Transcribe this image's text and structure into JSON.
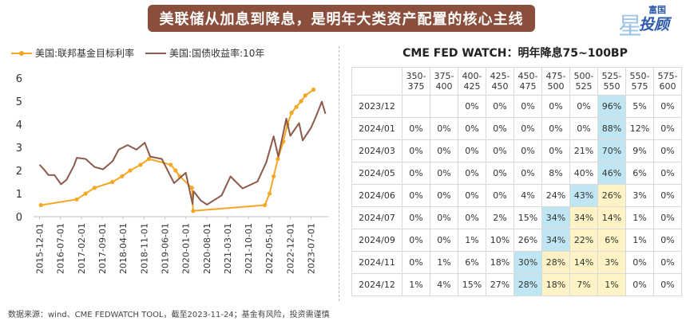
{
  "banner": {
    "title": "美联储从加息到降息，是明年大类资产配置的核心主线"
  },
  "logo": {
    "top": "富国",
    "main": "投顾",
    "star_char": "星",
    "star_color": "#9dc3e6",
    "text_color": "#2d5aa8"
  },
  "footer": {
    "source": "数据来源：wind、CME FEDWATCH TOOL，截至2023-11-24；基金有风险，投资需谨慎"
  },
  "chart_data": {
    "type": "line",
    "title": "",
    "ylim": [
      0,
      6
    ],
    "yticks": [
      0,
      1,
      2,
      3,
      4,
      5,
      6
    ],
    "x_range": [
      "2015-10-01",
      "2023-12-31"
    ],
    "xticks": [
      "2015-12-01",
      "2016-07-01",
      "2017-02-01",
      "2017-09-01",
      "2018-04-01",
      "2018-11-01",
      "2019-06-01",
      "2020-01-01",
      "2020-08-01",
      "2021-03-01",
      "2021-10-01",
      "2022-05-01",
      "2022-12-01",
      "2023-07-01"
    ],
    "legend_position": "top",
    "grid": false,
    "series": [
      {
        "name": "美国:联邦基金目标利率",
        "color": "#f5a623",
        "markers": true,
        "points": [
          [
            "2015-12-16",
            0.5
          ],
          [
            "2016-12-14",
            0.75
          ],
          [
            "2017-03-15",
            1.0
          ],
          [
            "2017-06-14",
            1.25
          ],
          [
            "2017-12-13",
            1.5
          ],
          [
            "2018-03-21",
            1.75
          ],
          [
            "2018-06-13",
            2.0
          ],
          [
            "2018-09-26",
            2.25
          ],
          [
            "2018-12-19",
            2.5
          ],
          [
            "2019-07-31",
            2.25
          ],
          [
            "2019-09-18",
            2.0
          ],
          [
            "2019-10-30",
            1.75
          ],
          [
            "2020-03-03",
            1.25
          ],
          [
            "2020-03-15",
            0.25
          ],
          [
            "2022-03-16",
            0.5
          ],
          [
            "2022-05-04",
            1.0
          ],
          [
            "2022-06-15",
            1.75
          ],
          [
            "2022-07-27",
            2.5
          ],
          [
            "2022-09-21",
            3.25
          ],
          [
            "2022-11-02",
            4.0
          ],
          [
            "2022-12-14",
            4.5
          ],
          [
            "2023-02-01",
            4.75
          ],
          [
            "2023-03-22",
            5.0
          ],
          [
            "2023-05-03",
            5.25
          ],
          [
            "2023-07-26",
            5.5
          ]
        ]
      },
      {
        "name": "美国:国债收益率:10年",
        "color": "#8b5a4a",
        "markers": false,
        "points": [
          [
            "2015-12-01",
            2.25
          ],
          [
            "2016-01-15",
            2.05
          ],
          [
            "2016-03-01",
            1.8
          ],
          [
            "2016-05-01",
            1.8
          ],
          [
            "2016-07-08",
            1.4
          ],
          [
            "2016-09-01",
            1.6
          ],
          [
            "2016-11-15",
            2.2
          ],
          [
            "2016-12-15",
            2.55
          ],
          [
            "2017-03-15",
            2.5
          ],
          [
            "2017-06-15",
            2.15
          ],
          [
            "2017-09-08",
            2.05
          ],
          [
            "2017-12-15",
            2.4
          ],
          [
            "2018-02-15",
            2.9
          ],
          [
            "2018-05-17",
            3.1
          ],
          [
            "2018-08-15",
            2.9
          ],
          [
            "2018-11-08",
            3.2
          ],
          [
            "2019-01-03",
            2.6
          ],
          [
            "2019-05-01",
            2.5
          ],
          [
            "2019-09-03",
            1.45
          ],
          [
            "2019-12-31",
            1.9
          ],
          [
            "2020-03-09",
            0.55
          ],
          [
            "2020-03-20",
            1.1
          ],
          [
            "2020-06-01",
            0.7
          ],
          [
            "2020-08-04",
            0.52
          ],
          [
            "2020-12-31",
            0.92
          ],
          [
            "2021-03-31",
            1.74
          ],
          [
            "2021-08-01",
            1.22
          ],
          [
            "2021-12-31",
            1.52
          ],
          [
            "2022-03-31",
            2.35
          ],
          [
            "2022-06-14",
            3.48
          ],
          [
            "2022-08-01",
            2.6
          ],
          [
            "2022-10-21",
            4.25
          ],
          [
            "2022-12-01",
            3.5
          ],
          [
            "2023-03-01",
            4.05
          ],
          [
            "2023-04-06",
            3.3
          ],
          [
            "2023-07-01",
            3.85
          ],
          [
            "2023-08-21",
            4.35
          ],
          [
            "2023-10-19",
            4.98
          ],
          [
            "2023-11-24",
            4.45
          ]
        ]
      }
    ]
  },
  "fedwatch": {
    "title": "CME FED WATCH：明年降息75~100BP",
    "columns": [
      "350-375",
      "375-400",
      "400-425",
      "425-450",
      "450-475",
      "475-500",
      "500-525",
      "525-550",
      "550-575",
      "575-600"
    ],
    "rows": [
      {
        "date": "2023/12",
        "values": [
          "",
          "",
          "0%",
          "0%",
          "0%",
          "0%",
          "0%",
          "96%",
          "5%",
          "0%"
        ],
        "hl": [
          "",
          "",
          "",
          "",
          "",
          "",
          "",
          "b",
          "",
          ""
        ]
      },
      {
        "date": "2024/01",
        "values": [
          "0%",
          "0%",
          "0%",
          "0%",
          "0%",
          "0%",
          "0%",
          "88%",
          "12%",
          "0%"
        ],
        "hl": [
          "",
          "",
          "",
          "",
          "",
          "",
          "",
          "b",
          "",
          ""
        ]
      },
      {
        "date": "2024/03",
        "values": [
          "0%",
          "0%",
          "0%",
          "0%",
          "0%",
          "0%",
          "21%",
          "70%",
          "9%",
          "0%"
        ],
        "hl": [
          "",
          "",
          "",
          "",
          "",
          "",
          "",
          "b",
          "",
          ""
        ]
      },
      {
        "date": "2024/05",
        "values": [
          "0%",
          "0%",
          "0%",
          "0%",
          "0%",
          "8%",
          "40%",
          "46%",
          "6%",
          "0%"
        ],
        "hl": [
          "",
          "",
          "",
          "",
          "",
          "",
          "",
          "b",
          "",
          ""
        ]
      },
      {
        "date": "2024/06",
        "values": [
          "0%",
          "0%",
          "0%",
          "0%",
          "4%",
          "24%",
          "43%",
          "26%",
          "3%",
          "0%"
        ],
        "hl": [
          "",
          "",
          "",
          "",
          "",
          "",
          "b",
          "y",
          "",
          ""
        ]
      },
      {
        "date": "2024/07",
        "values": [
          "0%",
          "0%",
          "0%",
          "2%",
          "15%",
          "34%",
          "34%",
          "14%",
          "1%",
          "0%"
        ],
        "hl": [
          "",
          "",
          "",
          "",
          "",
          "b",
          "y",
          "y",
          "",
          ""
        ]
      },
      {
        "date": "2024/09",
        "values": [
          "0%",
          "0%",
          "1%",
          "10%",
          "26%",
          "34%",
          "22%",
          "6%",
          "1%",
          "0%"
        ],
        "hl": [
          "",
          "",
          "",
          "",
          "",
          "b",
          "y",
          "y",
          "",
          ""
        ]
      },
      {
        "date": "2024/11",
        "values": [
          "0%",
          "1%",
          "6%",
          "18%",
          "30%",
          "28%",
          "14%",
          "3%",
          "0%",
          "0%"
        ],
        "hl": [
          "",
          "",
          "",
          "",
          "b",
          "y",
          "y",
          "y",
          "",
          ""
        ]
      },
      {
        "date": "2024/12",
        "values": [
          "1%",
          "4%",
          "15%",
          "27%",
          "28%",
          "18%",
          "7%",
          "1%",
          "0%",
          "0%"
        ],
        "hl": [
          "",
          "",
          "",
          "",
          "b",
          "y",
          "y",
          "y",
          "",
          ""
        ]
      }
    ]
  }
}
